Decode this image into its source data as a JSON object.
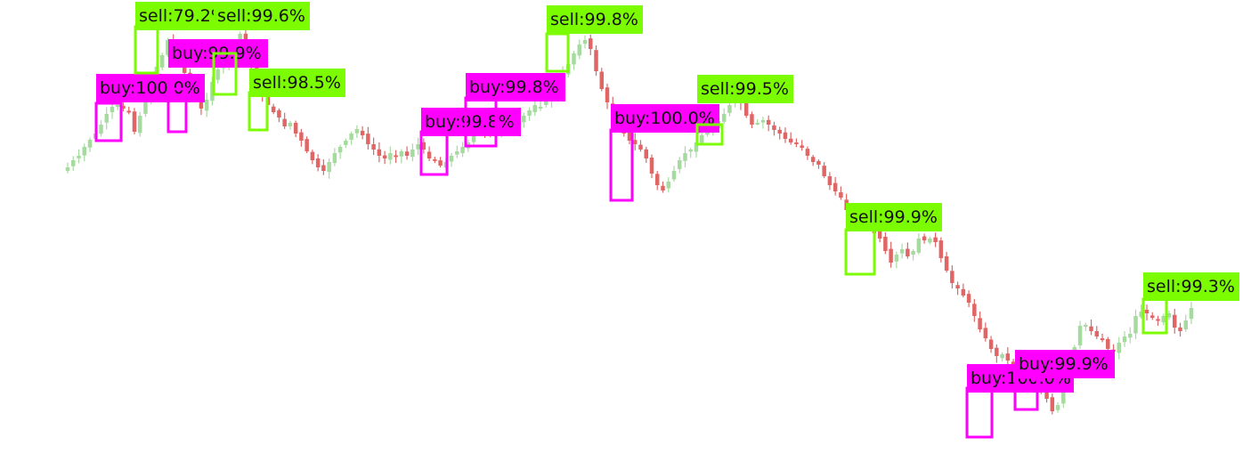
{
  "chart_data": {
    "type": "candlestick",
    "title": "",
    "xlabel": "",
    "ylabel": "",
    "grid": false,
    "legend": "none",
    "colors": {
      "up": "#a6dba0",
      "down": "#e06666",
      "buy_box": "#ff00ff",
      "sell_box": "#7cfc00"
    },
    "closes": [
      188,
      180,
      175,
      165,
      157,
      150,
      140,
      128,
      120,
      118,
      122,
      125,
      148,
      130,
      112,
      95,
      75,
      62,
      45,
      55,
      66,
      82,
      95,
      112,
      122,
      112,
      92,
      78,
      70,
      58,
      48,
      38,
      52,
      74,
      90,
      108,
      118,
      126,
      132,
      142,
      138,
      150,
      158,
      170,
      180,
      188,
      192,
      182,
      172,
      165,
      158,
      150,
      145,
      152,
      162,
      168,
      175,
      178,
      172,
      176,
      170,
      175,
      168,
      162,
      168,
      178,
      180,
      186,
      182,
      175,
      170,
      165,
      160,
      150,
      146,
      150,
      152,
      148,
      150,
      140,
      132,
      138,
      130,
      124,
      118,
      120,
      112,
      104,
      95,
      82,
      72,
      60,
      50,
      45,
      55,
      80,
      100,
      115,
      130,
      140,
      150,
      158,
      162,
      168,
      178,
      195,
      208,
      214,
      204,
      192,
      180,
      172,
      168,
      160,
      152,
      148,
      142,
      136,
      128,
      118,
      112,
      116,
      130,
      140,
      138,
      135,
      140,
      146,
      150,
      156,
      160,
      162,
      166,
      175,
      182,
      185,
      198,
      208,
      215,
      222,
      236,
      242,
      244,
      246,
      254,
      262,
      268,
      282,
      295,
      286,
      280,
      288,
      282,
      268,
      270,
      268,
      272,
      290,
      304,
      318,
      324,
      332,
      340,
      355,
      370,
      380,
      392,
      400,
      398,
      405,
      412,
      408,
      418,
      425,
      430,
      440,
      448,
      462,
      455,
      432,
      402,
      390,
      366,
      365,
      372,
      378,
      381,
      392,
      395,
      385,
      378,
      375,
      355,
      350,
      352,
      357,
      360,
      355,
      352,
      368,
      372,
      360,
      346
    ],
    "signals": [
      {
        "side": "buy",
        "label": "buy:100 0%"
      },
      {
        "side": "sell",
        "label": "sell:79.2%"
      },
      {
        "side": "buy",
        "label": "buy:99.9%"
      },
      {
        "side": "sell",
        "label": "sell:99.6%"
      },
      {
        "side": "sell",
        "label": "sell:98.5%"
      },
      {
        "side": "buy",
        "label": "buy:99.8%"
      },
      {
        "side": "buy",
        "label": "buy:99.8%"
      },
      {
        "side": "sell",
        "label": "sell:99.8%"
      },
      {
        "side": "buy",
        "label": "buy:100.0%"
      },
      {
        "side": "sell",
        "label": "sell:99.5%"
      },
      {
        "side": "sell",
        "label": "sell:99.9%"
      },
      {
        "side": "buy",
        "label": "buy:100.0%"
      },
      {
        "side": "buy",
        "label": "buy:99.9%"
      },
      {
        "side": "sell",
        "label": "sell:99.3%"
      }
    ]
  }
}
